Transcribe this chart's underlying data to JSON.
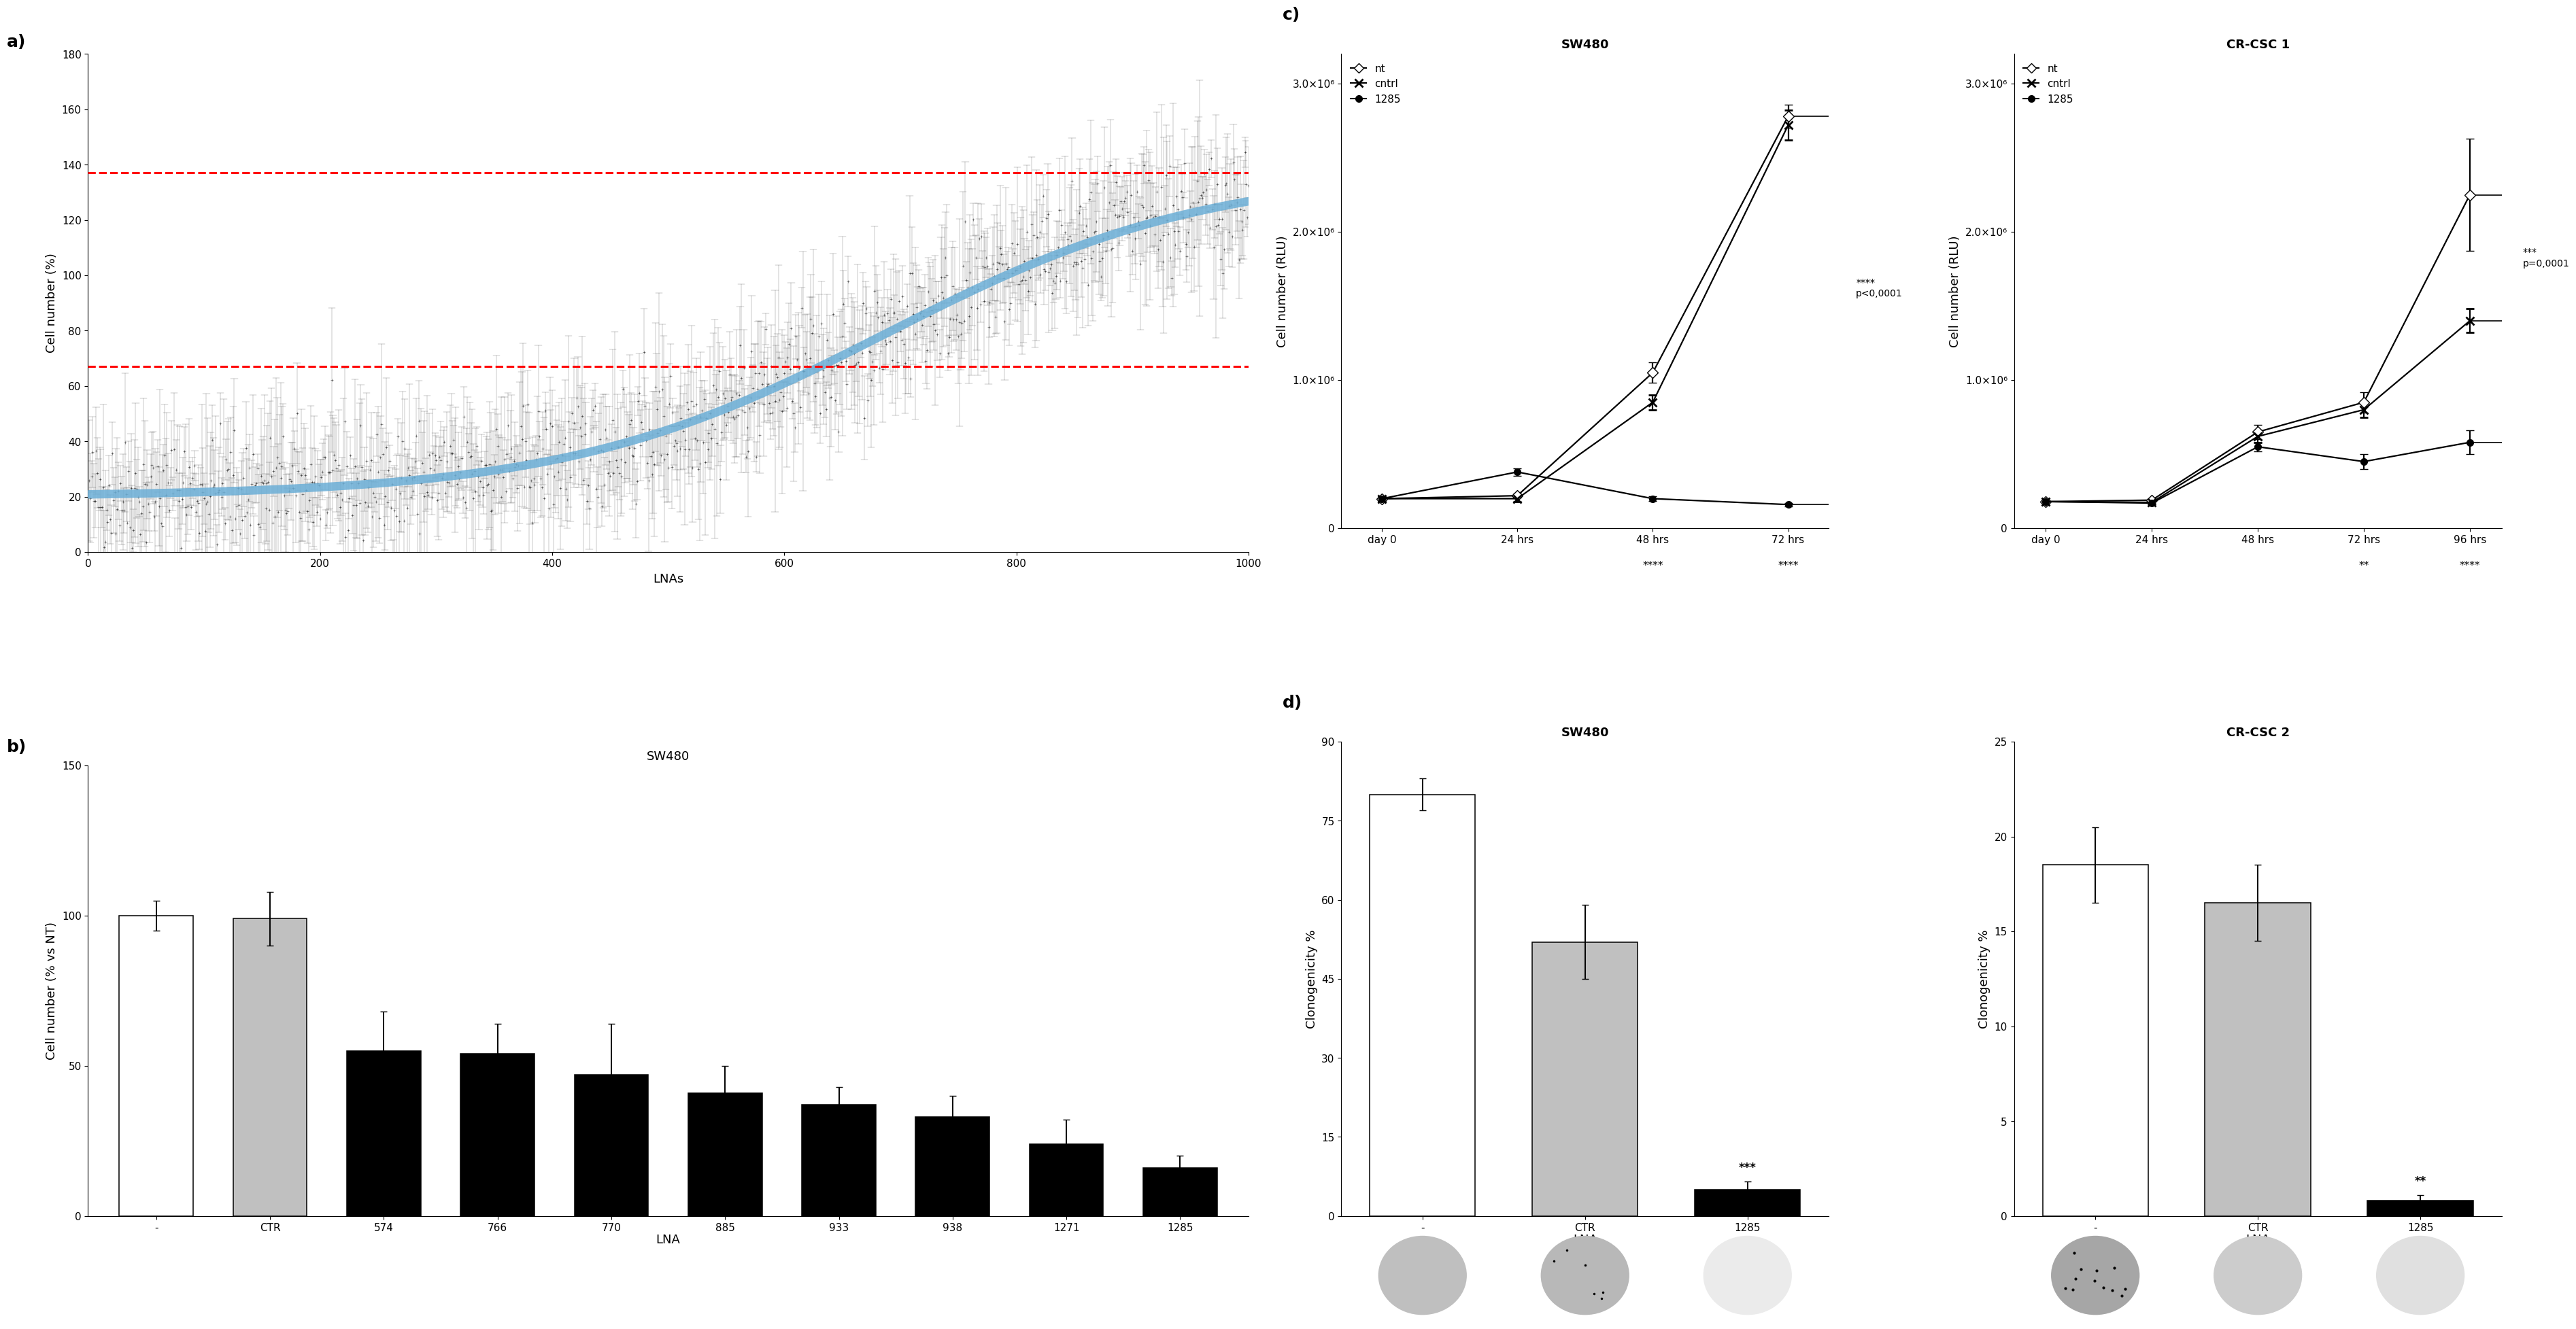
{
  "panel_a": {
    "xlabel": "LNAs",
    "ylabel": "Cell number (%)",
    "xlim": [
      0,
      1000
    ],
    "ylim": [
      0,
      180
    ],
    "yticks": [
      0,
      20,
      40,
      60,
      80,
      100,
      120,
      140,
      160,
      180
    ],
    "xticks": [
      0,
      200,
      400,
      600,
      800,
      1000
    ],
    "hline1": 137,
    "hline2": 67,
    "curve_color": "#6baed6",
    "n_points": 1000
  },
  "panel_b": {
    "title": "SW480",
    "xlabel": "LNA",
    "ylabel": "Cell number (% vs NT)",
    "ylim": [
      0,
      150
    ],
    "yticks": [
      0,
      50,
      100,
      150
    ],
    "categories": [
      "-",
      "CTR",
      "574",
      "766",
      "770",
      "885",
      "933",
      "938",
      "1271",
      "1285"
    ],
    "values": [
      100,
      99,
      55,
      54,
      47,
      41,
      37,
      33,
      24,
      16
    ],
    "errors": [
      5,
      9,
      13,
      10,
      17,
      9,
      6,
      7,
      8,
      4
    ],
    "bar_colors": [
      "white",
      "#c0c0c0",
      "black",
      "black",
      "black",
      "black",
      "black",
      "black",
      "black",
      "black"
    ],
    "bar_edgecolors": [
      "black",
      "black",
      "black",
      "black",
      "black",
      "black",
      "black",
      "black",
      "black",
      "black"
    ]
  },
  "panel_c_sw480": {
    "title": "SW480",
    "ylabel": "Cell number (RLU)",
    "ylim": [
      0,
      3200000.0
    ],
    "yticks": [
      0,
      1000000.0,
      2000000.0,
      3000000.0
    ],
    "yticklabels": [
      "0",
      "1.0×10⁶",
      "2.0×10⁶",
      "3.0×10⁶"
    ],
    "xtick_labels": [
      "day 0",
      "24 hrs",
      "48 hrs",
      "72 hrs"
    ],
    "nt_values": [
      200000.0,
      220000.0,
      1050000.0,
      2780000.0
    ],
    "nt_errors": [
      15000.0,
      15000.0,
      70000.0,
      80000.0
    ],
    "cntrl_values": [
      200000.0,
      200000.0,
      850000.0,
      2720000.0
    ],
    "cntrl_errors": [
      15000.0,
      20000.0,
      50000.0,
      100000.0
    ],
    "lna1285_values": [
      200000.0,
      380000.0,
      200000.0,
      160000.0
    ],
    "lna1285_errors": [
      15000.0,
      25000.0,
      15000.0,
      12000.0
    ],
    "sig_bracket": "****\np<0,0001",
    "sig_48": "****",
    "sig_72": "****"
  },
  "panel_c_crcsc1": {
    "title": "CR-CSC 1",
    "ylabel": "Cell number (RLU)",
    "ylim": [
      0,
      3200000.0
    ],
    "yticks": [
      0,
      1000000.0,
      2000000.0,
      3000000.0
    ],
    "yticklabels": [
      "0",
      "1.0×10⁶",
      "2.0×10⁶",
      "3.0×10⁶"
    ],
    "xtick_labels": [
      "day 0",
      "24 hrs",
      "48 hrs",
      "72 hrs",
      "96 hrs"
    ],
    "nt_values": [
      180000.0,
      190000.0,
      650000.0,
      850000.0,
      2250000.0
    ],
    "nt_errors": [
      10000.0,
      10000.0,
      50000.0,
      70000.0,
      380000.0
    ],
    "cntrl_values": [
      180000.0,
      175000.0,
      620000.0,
      800000.0,
      1400000.0
    ],
    "cntrl_errors": [
      10000.0,
      10000.0,
      40000.0,
      50000.0,
      80000.0
    ],
    "lna1285_values": [
      180000.0,
      170000.0,
      550000.0,
      450000.0,
      580000.0
    ],
    "lna1285_errors": [
      10000.0,
      10000.0,
      30000.0,
      50000.0,
      80000.0
    ],
    "sig_bracket_nt_lna": "***\np=0,0001",
    "sig_72": "**",
    "sig_96": "****"
  },
  "panel_d_sw480": {
    "title": "SW480",
    "xlabel": "LNA",
    "ylabel": "Clonogenicity %",
    "ylim": [
      0,
      90
    ],
    "yticks": [
      0,
      15,
      30,
      45,
      60,
      75,
      90
    ],
    "categories": [
      "-",
      "CTR",
      "1285"
    ],
    "values": [
      80,
      52,
      5
    ],
    "errors": [
      3,
      7,
      1.5
    ],
    "bar_colors": [
      "white",
      "#c0c0c0",
      "black"
    ],
    "bar_edgecolors": [
      "black",
      "black",
      "black"
    ],
    "sig": "***"
  },
  "panel_d_crcsc2": {
    "title": "CR-CSC 2",
    "xlabel": "LNA",
    "ylabel": "Clonogenicity %",
    "ylim": [
      0,
      25
    ],
    "yticks": [
      0,
      5,
      10,
      15,
      20,
      25
    ],
    "categories": [
      "-",
      "CTR",
      "1285"
    ],
    "values": [
      18.5,
      16.5,
      0.8
    ],
    "errors": [
      2.0,
      2.0,
      0.3
    ],
    "bar_colors": [
      "white",
      "#c0c0c0",
      "black"
    ],
    "bar_edgecolors": [
      "black",
      "black",
      "black"
    ],
    "sig": "**"
  },
  "label_fontsize": 13,
  "tick_fontsize": 11,
  "title_fontsize": 13,
  "panel_label_fontsize": 18
}
